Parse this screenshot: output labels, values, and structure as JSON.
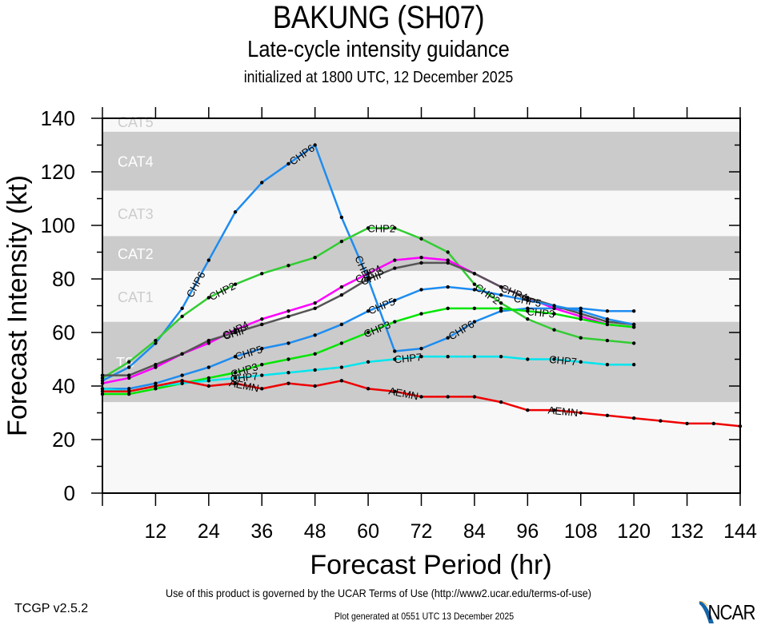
{
  "header": {
    "title": "BAKUNG (SH07)",
    "subtitle": "Late-cycle intensity guidance",
    "initialized": "initialized at 1800 UTC, 12 December 2025"
  },
  "footer": {
    "terms": "Use of this product is governed by the UCAR Terms of Use (http://www2.ucar.edu/terms-of-use)",
    "version": "TCGP v2.5.2",
    "generated": "Plot generated at 0551 UTC   13 December 2025",
    "logo": "NCAR"
  },
  "chart_data": {
    "type": "line",
    "title": "BAKUNG (SH07)",
    "xlabel": "Forecast Period (hr)",
    "ylabel": "Forecast Intensity (kt)",
    "xlim": [
      0,
      144
    ],
    "ylim": [
      0,
      140
    ],
    "xticks": [
      12,
      24,
      36,
      48,
      60,
      72,
      84,
      96,
      108,
      120,
      132,
      144
    ],
    "yticks": [
      0,
      20,
      40,
      60,
      80,
      100,
      120,
      140
    ],
    "grid": false,
    "bands": [
      {
        "label": "TS",
        "min": 34,
        "max": 64,
        "shade": "dark"
      },
      {
        "label": "CAT1",
        "min": 64,
        "max": 83,
        "shade": "light"
      },
      {
        "label": "CAT2",
        "min": 83,
        "max": 96,
        "shade": "dark"
      },
      {
        "label": "CAT3",
        "min": 96,
        "max": 113,
        "shade": "light"
      },
      {
        "label": "CAT4",
        "min": 113,
        "max": 135,
        "shade": "dark"
      },
      {
        "label": "CAT5",
        "min": 135,
        "max": 140,
        "shade": "light"
      }
    ],
    "series": [
      {
        "name": "CHP6",
        "color": "#1e8cf0",
        "x": [
          0,
          6,
          12,
          18,
          24,
          30,
          36,
          42,
          48,
          54,
          60,
          66,
          72,
          78,
          84,
          90,
          96,
          102,
          108,
          114,
          120
        ],
        "y": [
          42,
          47,
          56,
          69,
          87,
          105,
          116,
          123,
          130,
          103,
          80,
          53,
          54,
          58,
          64,
          68,
          69,
          69,
          69,
          68,
          68
        ],
        "labels_at": [
          21,
          45,
          59,
          81
        ]
      },
      {
        "name": "CHP2",
        "color": "#33cc33",
        "x": [
          0,
          6,
          12,
          18,
          24,
          30,
          36,
          42,
          48,
          54,
          60,
          66,
          72,
          78,
          84,
          90,
          96,
          102,
          108,
          114,
          120
        ],
        "y": [
          43,
          49,
          57,
          66,
          73,
          78,
          82,
          85,
          88,
          94,
          99,
          99,
          95,
          90,
          78,
          71,
          65,
          61,
          58,
          57,
          56
        ],
        "labels_at": [
          27,
          63,
          87
        ]
      },
      {
        "name": "CHP4",
        "color": "#ff00ff",
        "x": [
          0,
          6,
          12,
          18,
          24,
          30,
          36,
          42,
          48,
          54,
          60,
          66,
          72,
          78,
          84,
          90,
          96,
          102,
          108,
          114,
          120
        ],
        "y": [
          41,
          43,
          47,
          52,
          56,
          61,
          65,
          68,
          71,
          77,
          82,
          87,
          88,
          87,
          82,
          77,
          73,
          69,
          66,
          63,
          62
        ],
        "labels_at": [
          30,
          60,
          93
        ]
      },
      {
        "name": "CHIP",
        "color": "#555555",
        "x": [
          0,
          6,
          12,
          18,
          24,
          30,
          36,
          42,
          48,
          54,
          60,
          66,
          72,
          78,
          84,
          90,
          96,
          102,
          108,
          114,
          120
        ],
        "y": [
          44,
          44,
          48,
          52,
          57,
          60,
          63,
          66,
          69,
          74,
          80,
          84,
          86,
          86,
          82,
          77,
          73,
          70,
          67,
          64,
          63
        ],
        "labels_at": [
          30,
          61
        ]
      },
      {
        "name": "CHP5",
        "color": "#1e8cf0",
        "x": [
          0,
          6,
          12,
          18,
          24,
          30,
          36,
          42,
          48,
          54,
          60,
          66,
          72,
          78,
          84,
          90,
          96,
          102,
          108,
          114,
          120
        ],
        "y": [
          39,
          39,
          41,
          44,
          47,
          51,
          54,
          56,
          59,
          63,
          68,
          72,
          76,
          77,
          76,
          74,
          72,
          70,
          68,
          65,
          63
        ],
        "labels_at": [
          33,
          63,
          96
        ]
      },
      {
        "name": "CHP3",
        "color": "#00e600",
        "x": [
          0,
          6,
          12,
          18,
          24,
          30,
          36,
          42,
          48,
          54,
          60,
          66,
          72,
          78,
          84,
          90,
          96,
          102,
          108,
          114,
          120
        ],
        "y": [
          37,
          37,
          39,
          41,
          43,
          45,
          48,
          50,
          52,
          56,
          60,
          64,
          67,
          69,
          69,
          69,
          68,
          67,
          65,
          63,
          62
        ],
        "labels_at": [
          32,
          62,
          99
        ]
      },
      {
        "name": "CHP7",
        "color": "#00e5ee",
        "x": [
          0,
          6,
          12,
          18,
          24,
          30,
          36,
          42,
          48,
          54,
          60,
          66,
          72,
          78,
          84,
          90,
          96,
          102,
          108,
          114,
          120
        ],
        "y": [
          39,
          38,
          40,
          41,
          42,
          43,
          44,
          45,
          46,
          47,
          49,
          50,
          51,
          51,
          51,
          51,
          50,
          50,
          49,
          48,
          48
        ],
        "labels_at": [
          32,
          69,
          104
        ]
      },
      {
        "name": "AEMN",
        "color": "#ee0000",
        "x": [
          0,
          6,
          12,
          18,
          24,
          30,
          36,
          42,
          48,
          54,
          60,
          66,
          72,
          78,
          84,
          90,
          96,
          102,
          108,
          114,
          120,
          126,
          132,
          138,
          144
        ],
        "y": [
          38,
          38,
          40,
          42,
          40,
          41,
          39,
          41,
          40,
          42,
          39,
          38,
          36,
          36,
          36,
          34,
          31,
          31,
          30,
          29,
          28,
          27,
          26,
          26,
          25
        ],
        "labels_at": [
          32,
          68,
          104
        ]
      }
    ]
  }
}
